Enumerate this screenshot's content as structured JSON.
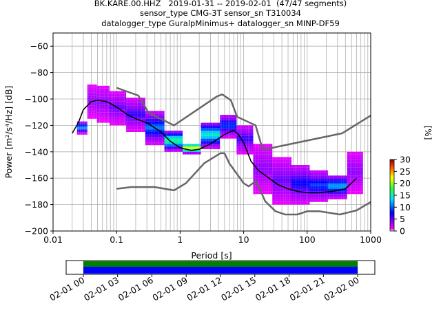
{
  "title": {
    "line1": "BK.KARE.00.HHZ   2019-01-31 -- 2019-02-01  (47/47 segments)",
    "line2": "sensor_type CMG-3T sensor_sn T310034",
    "line3": "datalogger_type GuralpMinimus+ datalogger_sn MINP-DF59"
  },
  "chart_data": {
    "type": "heatmap",
    "xlabel": "Period [s]",
    "ylabel": "Power [m²/s⁴/Hz] [dB]",
    "x_scale": "log",
    "xlim": [
      0.01,
      1000
    ],
    "ylim": [
      -200,
      -50
    ],
    "xticks": [
      "0.01",
      "0.1",
      "1",
      "10",
      "100",
      "1000"
    ],
    "yticks": [
      "−200",
      "−180",
      "−160",
      "−140",
      "−120",
      "−100",
      "−80",
      "−60"
    ],
    "grid": true,
    "colorbar": {
      "label": "[%]",
      "range": [
        0,
        30
      ],
      "ticks": [
        "0",
        "5",
        "10",
        "15",
        "20",
        "25",
        "30"
      ]
    },
    "mean_curve": {
      "period": [
        0.02,
        0.025,
        0.03,
        0.04,
        0.05,
        0.07,
        0.1,
        0.15,
        0.2,
        0.3,
        0.5,
        0.7,
        1.0,
        1.5,
        2.0,
        3.0,
        4.0,
        5.0,
        6.0,
        7.0,
        8.0,
        10.0,
        13.0,
        17.0,
        25.0,
        35.0,
        50.0,
        70.0,
        100.0,
        150.0,
        250.0,
        400.0,
        600.0
      ],
      "db": [
        -126,
        -118,
        -108,
        -102,
        -101,
        -102,
        -106,
        -112,
        -115,
        -118,
        -125,
        -132,
        -137,
        -139,
        -138,
        -134,
        -130,
        -127,
        -125,
        -124,
        -126,
        -133,
        -147,
        -154,
        -160,
        -165,
        -168,
        -170,
        -171,
        -171,
        -170,
        -168,
        -160
      ]
    },
    "histogram_bands": [
      {
        "period": 0.03,
        "db_min": -127,
        "db_max": -118,
        "percent": 10
      },
      {
        "period": 0.04,
        "db_min": -115,
        "db_max": -90,
        "percent": 4
      },
      {
        "period": 0.06,
        "db_min": -118,
        "db_max": -90,
        "percent": 4
      },
      {
        "period": 0.1,
        "db_min": -120,
        "db_max": -95,
        "percent": 5
      },
      {
        "period": 0.2,
        "db_min": -125,
        "db_max": -100,
        "percent": 6
      },
      {
        "period": 0.4,
        "db_min": -135,
        "db_max": -110,
        "percent": 9
      },
      {
        "period": 0.8,
        "db_min": -140,
        "db_max": -125,
        "percent": 14
      },
      {
        "period": 1.5,
        "db_min": -142,
        "db_max": -134,
        "percent": 20
      },
      {
        "period": 3.0,
        "db_min": -138,
        "db_max": -118,
        "percent": 12
      },
      {
        "period": 6.0,
        "db_min": -130,
        "db_max": -112,
        "percent": 8
      },
      {
        "period": 10.0,
        "db_min": -142,
        "db_max": -120,
        "percent": 6
      },
      {
        "period": 20.0,
        "db_min": -172,
        "db_max": -135,
        "percent": 4
      },
      {
        "period": 40.0,
        "db_min": -180,
        "db_max": -145,
        "percent": 5
      },
      {
        "period": 80.0,
        "db_min": -180,
        "db_max": -150,
        "percent": 7
      },
      {
        "period": 150.0,
        "db_min": -178,
        "db_max": -155,
        "percent": 8
      },
      {
        "period": 300.0,
        "db_min": -176,
        "db_max": -158,
        "percent": 10
      },
      {
        "period": 600.0,
        "db_min": -172,
        "db_max": -140,
        "percent": 4
      }
    ],
    "nhnm": {
      "period": [
        0.1,
        0.22,
        0.32,
        0.8,
        3.8,
        4.6,
        6.3,
        7.9,
        15.4,
        20.0,
        354.8,
        1000.0
      ],
      "db": [
        -91.5,
        -97.4,
        -110.5,
        -120.0,
        -98.0,
        -96.5,
        -101.0,
        -113.5,
        -120.0,
        -138.5,
        -126.0,
        -112.5
      ]
    },
    "nlnm": {
      "period": [
        0.1,
        0.17,
        0.4,
        0.8,
        1.24,
        2.4,
        4.3,
        5.0,
        6.0,
        10.0,
        12.0,
        15.6,
        21.9,
        31.6,
        45.0,
        70.0,
        101.0,
        154.0,
        328.0,
        600.0,
        1000.0
      ],
      "db": [
        -168.0,
        -166.7,
        -166.7,
        -169.2,
        -163.7,
        -148.6,
        -141.1,
        -141.1,
        -149.0,
        -163.8,
        -166.2,
        -162.1,
        -177.5,
        -185.0,
        -187.5,
        -187.5,
        -185.0,
        -185.0,
        -187.5,
        -184.4,
        -178.0
      ]
    },
    "timeline": {
      "tick_labels": [
        "02-01 00",
        "02-01 03",
        "02-01 06",
        "02-01 09",
        "02-01 12",
        "02-01 15",
        "02-01 18",
        "02-01 21",
        "02-02 00"
      ],
      "coverage_start_hour": 0,
      "coverage_end_hour": 24,
      "window_start_hour": -1.5,
      "window_end_hour": 25.5
    },
    "colors": {
      "mean": "#000000",
      "noise_models": "#666666",
      "grid": "#b0b0b0",
      "timeline_top": "#008000",
      "timeline_bottom": "#0000ff"
    }
  }
}
